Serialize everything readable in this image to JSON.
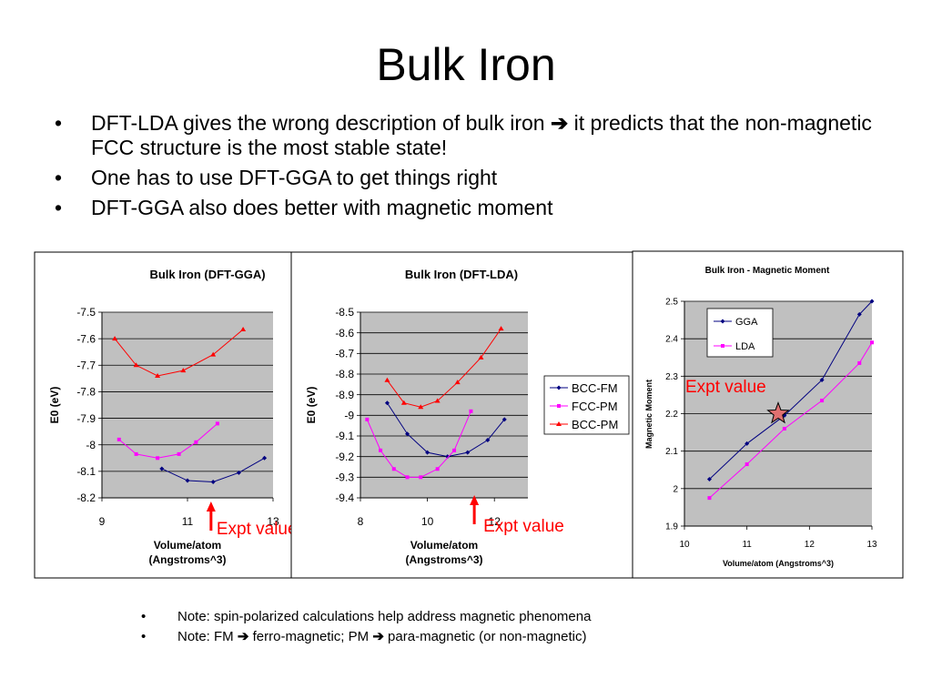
{
  "slide": {
    "title": "Bulk Iron",
    "bullets": [
      {
        "before": "DFT-LDA gives the wrong description of bulk iron ",
        "arrow": "➔",
        "after": " it predicts that the non-magnetic FCC structure is the most stable state!"
      },
      {
        "before": "One has to use DFT-GGA to get things right",
        "arrow": "",
        "after": ""
      },
      {
        "before": "DFT-GGA also does better with magnetic moment",
        "arrow": "",
        "after": ""
      }
    ],
    "notes": [
      {
        "before": "Note: spin-polarized calculations help address magnetic phenomena",
        "arrow": "",
        "after": ""
      },
      {
        "before": "Note: FM ",
        "arrow": "➔",
        "after": " ferro-magnetic; PM ",
        "arrow2": "➔",
        "after2": " para-magnetic (or non-magnetic)"
      }
    ]
  },
  "chart_data": [
    {
      "type": "line",
      "title": "Bulk Iron (DFT-GGA)",
      "xlabel": "Volume/atom",
      "xlabel2": "(Angstroms^3)",
      "ylabel": "E0 (eV)",
      "xlim": [
        9,
        13
      ],
      "ylim": [
        -8.2,
        -7.5
      ],
      "xticks": [
        "9",
        "11",
        "13"
      ],
      "yticks": [
        "-7.5",
        "-7.6",
        "-7.7",
        "-7.8",
        "-7.9",
        "-8",
        "-8.1",
        "-8.2"
      ],
      "grid": true,
      "annotation": {
        "text": "Expt value",
        "x": 11.55
      },
      "series": [
        {
          "name": "BCC-FM",
          "color": "#000080",
          "marker": "diamond",
          "x": [
            10.4,
            11.0,
            11.6,
            12.2,
            12.8
          ],
          "y": [
            -8.09,
            -8.135,
            -8.14,
            -8.105,
            -8.05
          ]
        },
        {
          "name": "FCC-PM",
          "color": "#ff00ff",
          "marker": "square",
          "x": [
            9.4,
            9.8,
            10.3,
            10.8,
            11.2,
            11.7
          ],
          "y": [
            -7.98,
            -8.035,
            -8.05,
            -8.035,
            -7.99,
            -7.92
          ]
        },
        {
          "name": "BCC-PM",
          "color": "#ff0000",
          "marker": "triangle",
          "x": [
            9.3,
            9.8,
            10.3,
            10.9,
            11.6,
            12.3
          ],
          "y": [
            -7.6,
            -7.7,
            -7.74,
            -7.72,
            -7.66,
            -7.565
          ]
        }
      ]
    },
    {
      "type": "line",
      "title": "Bulk Iron (DFT-LDA)",
      "xlabel": "Volume/atom",
      "xlabel2": "(Angstroms^3)",
      "ylabel": "E0 (eV)",
      "xlim": [
        8,
        13
      ],
      "ylim": [
        -9.4,
        -8.5
      ],
      "xticks": [
        "8",
        "10",
        "12"
      ],
      "yticks": [
        "-8.5",
        "-8.6",
        "-8.7",
        "-8.8",
        "-8.9",
        "-9",
        "-9.1",
        "-9.2",
        "-9.3",
        "-9.4"
      ],
      "grid": true,
      "legend": "right",
      "annotation": {
        "text": "Expt value",
        "x": 11.4
      },
      "series": [
        {
          "name": "BCC-FM",
          "color": "#000080",
          "marker": "diamond",
          "x": [
            8.8,
            9.4,
            10.0,
            10.6,
            11.2,
            11.8,
            12.3
          ],
          "y": [
            -8.94,
            -9.09,
            -9.18,
            -9.2,
            -9.18,
            -9.12,
            -9.02
          ]
        },
        {
          "name": "FCC-PM",
          "color": "#ff00ff",
          "marker": "square",
          "x": [
            8.2,
            8.6,
            9.0,
            9.4,
            9.8,
            10.3,
            10.8,
            11.3
          ],
          "y": [
            -9.02,
            -9.17,
            -9.26,
            -9.3,
            -9.3,
            -9.26,
            -9.17,
            -8.98
          ]
        },
        {
          "name": "BCC-PM",
          "color": "#ff0000",
          "marker": "triangle",
          "x": [
            8.8,
            9.3,
            9.8,
            10.3,
            10.9,
            11.6,
            12.2
          ],
          "y": [
            -8.83,
            -8.94,
            -8.96,
            -8.93,
            -8.84,
            -8.72,
            -8.58
          ]
        }
      ]
    },
    {
      "type": "line",
      "title": "Bulk Iron - Magnetic Moment",
      "xlabel": "Volume/atom (Angstroms^3)",
      "ylabel": "Magnetic Moment",
      "xlim": [
        10,
        13
      ],
      "ylim": [
        1.9,
        2.5
      ],
      "xticks": [
        "10",
        "11",
        "12",
        "13"
      ],
      "yticks": [
        "2.5",
        "2.4",
        "2.3",
        "2.2",
        "2.1",
        "2",
        "1.9"
      ],
      "grid": true,
      "legend": "top-left",
      "annotation": {
        "text": "Expt value",
        "x": 11.5,
        "y": 2.2
      },
      "series": [
        {
          "name": "GGA",
          "color": "#000080",
          "marker": "diamond",
          "x": [
            10.4,
            11.0,
            11.6,
            12.2,
            12.8,
            13.0
          ],
          "y": [
            2.025,
            2.12,
            2.195,
            2.29,
            2.465,
            2.5
          ]
        },
        {
          "name": "LDA",
          "color": "#ff00ff",
          "marker": "square",
          "x": [
            10.4,
            11.0,
            11.6,
            12.2,
            12.8,
            13.0
          ],
          "y": [
            1.975,
            2.065,
            2.16,
            2.235,
            2.335,
            2.39
          ]
        }
      ]
    }
  ]
}
